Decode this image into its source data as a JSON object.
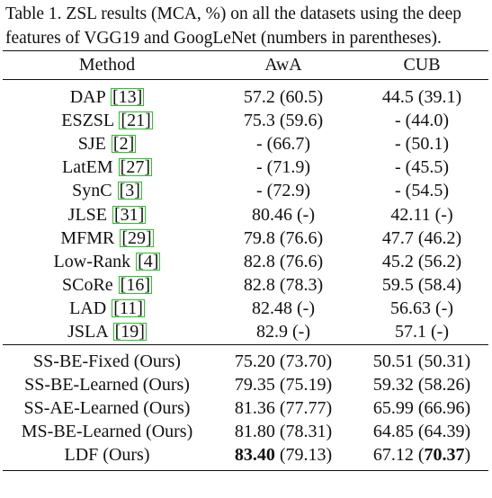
{
  "caption": "Table 1. ZSL results (MCA, %) on all the datasets using the deep features of VGG19 and GoogLeNet (numbers in parentheses).",
  "header": {
    "method": "Method",
    "awa": "AwA",
    "cub": "CUB"
  },
  "baselines": [
    {
      "name": "DAP",
      "ref": "13",
      "awa": "57.2 (60.5)",
      "cub": "44.5 (39.1)"
    },
    {
      "name": "ESZSL",
      "ref": "21",
      "awa": "75.3 (59.6)",
      "cub": "- (44.0)"
    },
    {
      "name": "SJE",
      "ref": "2",
      "awa": "- (66.7)",
      "cub": "- (50.1)"
    },
    {
      "name": "LatEM",
      "ref": "27",
      "awa": "- (71.9)",
      "cub": "- (45.5)"
    },
    {
      "name": "SynC",
      "ref": "3",
      "awa": "- (72.9)",
      "cub": "- (54.5)"
    },
    {
      "name": "JLSE",
      "ref": "31",
      "awa": "80.46 (-)",
      "cub": "42.11 (-)"
    },
    {
      "name": "MFMR",
      "ref": "29",
      "awa": "79.8 (76.6)",
      "cub": "47.7 (46.2)"
    },
    {
      "name": "Low-Rank",
      "ref": "4",
      "awa": "82.8 (76.6)",
      "cub": "45.2 (56.2)"
    },
    {
      "name": "SCoRe",
      "ref": "16",
      "awa": "82.8 (78.3)",
      "cub": "59.5 (58.4)"
    },
    {
      "name": "LAD",
      "ref": "11",
      "awa": "82.48 (-)",
      "cub": "56.63 (-)"
    },
    {
      "name": "JSLA",
      "ref": "19",
      "awa": "82.9 (-)",
      "cub": "57.1 (-)"
    }
  ],
  "ours": [
    {
      "name": "SS-BE-Fixed (Ours)",
      "awa": "75.20 (73.70)",
      "cub": "50.51 (50.31)"
    },
    {
      "name": "SS-BE-Learned (Ours)",
      "awa": "79.35 (75.19)",
      "cub": "59.32 (58.26)"
    },
    {
      "name": "SS-AE-Learned (Ours)",
      "awa": "81.36 (77.77)",
      "cub": "65.99 (66.96)"
    },
    {
      "name": "MS-BE-Learned (Ours)",
      "awa": "81.80 (78.31)",
      "cub": "64.85 (64.39)"
    },
    {
      "name": "LDF (Ours)",
      "awa_bold": "83.40",
      "awa_rest": " (79.13)",
      "cub_lead": "67.12 (",
      "cub_bold": "70.37",
      "cub_end": ")"
    }
  ]
}
